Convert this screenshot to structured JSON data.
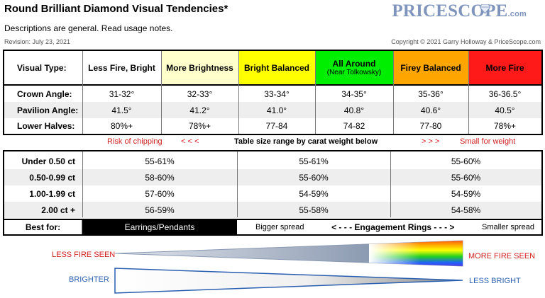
{
  "header": {
    "title": "Round Brilliant Diamond Visual Tendencies*",
    "subtitle": "Descriptions are general. Read usage notes.",
    "revision": "Revision: July 23, 2021",
    "copyright": "Copyright © 2021 Garry Holloway & PriceScope.com",
    "logo_main": "PRICESCOPE",
    "logo_domain": ".com"
  },
  "colors": {
    "less_fire_bright": "#ffffff",
    "more_brightness": "#ffffcc",
    "bright_balanced": "#ffff00",
    "all_around": "#00ee00",
    "firey_balanced": "#ffa500",
    "more_fire": "#ff1a1a",
    "logo": "#7f94bd",
    "warning_text": "#d02020",
    "brightness_text": "#2a5fb0"
  },
  "top_table": {
    "row_label_visual": "Visual Type:",
    "types": [
      {
        "name": "Less Fire, Bright",
        "sub": ""
      },
      {
        "name": "More Brightness",
        "sub": ""
      },
      {
        "name": "Bright Balanced",
        "sub": ""
      },
      {
        "name": "All Around",
        "sub": "(Near Tolkowsky)"
      },
      {
        "name": "Firey Balanced",
        "sub": ""
      },
      {
        "name": "More Fire",
        "sub": ""
      }
    ],
    "rows": [
      {
        "label": "Crown Angle:",
        "values": [
          "31-32°",
          "32-33°",
          "33-34°",
          "34-35°",
          "35-36°",
          "36-36.5°"
        ]
      },
      {
        "label": "Pavilion Angle:",
        "values": [
          "41.5°",
          "41.2°",
          "41.0°",
          "40.8°",
          "40.6°",
          "40.5°"
        ]
      },
      {
        "label": "Lower Halves:",
        "values": [
          "80%+",
          "78%+",
          "77-84",
          "74-82",
          "77-80",
          "78%+"
        ]
      }
    ]
  },
  "middle": {
    "risk": "Risk of chipping",
    "left_arrows": "< < <",
    "center": "Table size range by carat weight below",
    "right_arrows": "> > >",
    "small": "Small for weight"
  },
  "bottom_table": {
    "rows": [
      {
        "label": "Under 0.50 ct",
        "values": [
          "55-61%",
          "55-61%",
          "55-60%"
        ]
      },
      {
        "label": "0.50-0.99 ct",
        "values": [
          "58-60%",
          "55-60%",
          "55-60%"
        ]
      },
      {
        "label": "1.00-1.99 ct",
        "values": [
          "57-60%",
          "54-59%",
          "54-59%"
        ]
      },
      {
        "label": "2.00 ct +",
        "values": [
          "56-59%",
          "55-58%",
          "54-58%"
        ]
      }
    ],
    "best_label": "Best for:",
    "best_earrings": "Earrings/Pendants",
    "best_bigger": "Bigger spread",
    "best_engagement": "< - - - Engagement Rings - - - >",
    "best_smaller": "Smaller spread"
  },
  "triangles": {
    "less_fire_seen": "LESS FIRE SEEN",
    "more_fire_seen": "MORE FIRE SEEN",
    "brighter": "BRIGHTER",
    "less_bright": "LESS BRIGHT"
  }
}
